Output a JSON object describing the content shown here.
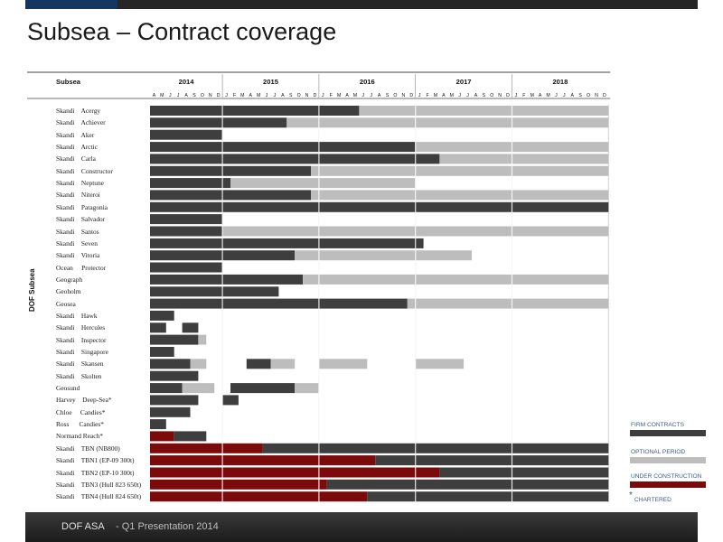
{
  "page": {
    "title": "Subsea – Contract coverage"
  },
  "footer": {
    "company": "DOF ASA",
    "subtitle": "- Q1 Presentation 2014"
  },
  "colors": {
    "firm": "#3e3e3e",
    "optional": "#bdbdbd",
    "construction": "#7d0a0a",
    "header_dark": "#262626",
    "accent_blue": "#14365f"
  },
  "chart_data": {
    "type": "table",
    "header_label": "Subsea",
    "group_label": "DOF Subsea",
    "years": [
      "2014",
      "2015",
      "2016",
      "2017",
      "2018"
    ],
    "start_month": "2014-04",
    "end_month": "2018-12",
    "months": [
      "A",
      "M",
      "J",
      "J",
      "A",
      "S",
      "O",
      "N",
      "D",
      "J",
      "F",
      "M",
      "A",
      "M",
      "J",
      "J",
      "A",
      "S",
      "O",
      "N",
      "D",
      "J",
      "F",
      "M",
      "A",
      "M",
      "J",
      "J",
      "A",
      "S",
      "O",
      "N",
      "D",
      "J",
      "F",
      "M",
      "A",
      "M",
      "J",
      "J",
      "A",
      "S",
      "O",
      "N",
      "D",
      "J",
      "F",
      "M",
      "A",
      "M",
      "J",
      "J",
      "A",
      "S",
      "O",
      "N",
      "D"
    ],
    "legend": [
      {
        "key": "firm",
        "label": "FIRM CONTRACTS"
      },
      {
        "key": "optional",
        "label": "OPTIONAL PERIOD"
      },
      {
        "key": "construction",
        "label": "UNDER CONSTRUCTION"
      },
      {
        "key": "chartered",
        "label": "CHARTERED",
        "symbol": "*"
      }
    ],
    "rows": [
      {
        "label": "Skandi    Acergy",
        "segments": [
          [
            "firm",
            "2014-04",
            "2016-05"
          ],
          [
            "optional",
            "2016-06",
            "2018-12"
          ]
        ]
      },
      {
        "label": "Skandi    Achiever",
        "segments": [
          [
            "firm",
            "2014-04",
            "2015-08"
          ],
          [
            "optional",
            "2015-09",
            "2018-12"
          ]
        ]
      },
      {
        "label": "Skandi    Aker",
        "segments": [
          [
            "firm",
            "2014-04",
            "2014-12"
          ]
        ]
      },
      {
        "label": "Skandi    Arctic",
        "segments": [
          [
            "firm",
            "2014-04",
            "2016-12"
          ],
          [
            "optional",
            "2017-01",
            "2018-12"
          ]
        ]
      },
      {
        "label": "Skandi    Carla",
        "segments": [
          [
            "firm",
            "2014-04",
            "2017-03"
          ],
          [
            "optional",
            "2017-04",
            "2018-12"
          ]
        ]
      },
      {
        "label": "Skandi    Constructor",
        "segments": [
          [
            "firm",
            "2014-04",
            "2015-11"
          ],
          [
            "optional",
            "2015-12",
            "2018-12"
          ]
        ]
      },
      {
        "label": "Skandi    Neptune",
        "segments": [
          [
            "firm",
            "2014-04",
            "2015-01"
          ],
          [
            "optional",
            "2015-02",
            "2016-12"
          ]
        ]
      },
      {
        "label": "Skandi    Niteroi",
        "segments": [
          [
            "firm",
            "2014-04",
            "2015-11"
          ],
          [
            "optional",
            "2015-12",
            "2018-12"
          ]
        ]
      },
      {
        "label": "Skandi    Patagonia",
        "segments": [
          [
            "firm",
            "2014-04",
            "2018-12"
          ]
        ]
      },
      {
        "label": "Skandi    Salvador",
        "segments": [
          [
            "firm",
            "2014-04",
            "2014-12"
          ]
        ]
      },
      {
        "label": "Skandi    Santos",
        "segments": [
          [
            "firm",
            "2014-04",
            "2014-12"
          ],
          [
            "optional",
            "2015-01",
            "2018-12"
          ]
        ]
      },
      {
        "label": "Skandi    Seven",
        "segments": [
          [
            "firm",
            "2014-04",
            "2017-01"
          ]
        ]
      },
      {
        "label": "Skandi    Vitoria",
        "segments": [
          [
            "firm",
            "2014-04",
            "2015-09"
          ],
          [
            "optional",
            "2015-10",
            "2017-07"
          ]
        ]
      },
      {
        "label": "Ocean     Protector",
        "segments": [
          [
            "firm",
            "2014-04",
            "2014-12"
          ]
        ]
      },
      {
        "label": "Geograph",
        "segments": [
          [
            "firm",
            "2014-04",
            "2015-10"
          ],
          [
            "optional",
            "2015-11",
            "2018-12"
          ]
        ]
      },
      {
        "label": "Geoholm",
        "segments": [
          [
            "firm",
            "2014-04",
            "2015-07"
          ]
        ]
      },
      {
        "label": "Geosea",
        "segments": [
          [
            "firm",
            "2014-04",
            "2016-11"
          ],
          [
            "optional",
            "2016-12",
            "2018-12"
          ]
        ]
      },
      {
        "label": "Skandi    Hawk",
        "segments": [
          [
            "firm",
            "2014-04",
            "2014-06"
          ]
        ]
      },
      {
        "label": "Skandi    Hercules",
        "segments": [
          [
            "firm",
            "2014-04",
            "2014-05"
          ],
          [
            "firm",
            "2014-08",
            "2014-09"
          ]
        ]
      },
      {
        "label": "Skandi    Inspector",
        "segments": [
          [
            "firm",
            "2014-04",
            "2014-09"
          ],
          [
            "optional",
            "2014-10",
            "2014-10"
          ]
        ]
      },
      {
        "label": "Skandi    Singapore",
        "segments": [
          [
            "firm",
            "2014-04",
            "2014-06"
          ]
        ]
      },
      {
        "label": "Skandi    Skansen",
        "segments": [
          [
            "firm",
            "2014-04",
            "2014-08"
          ],
          [
            "optional",
            "2014-09",
            "2014-10"
          ],
          [
            "firm",
            "2015-04",
            "2015-06"
          ],
          [
            "optional",
            "2015-07",
            "2015-09"
          ],
          [
            "optional",
            "2016-01",
            "2016-06"
          ],
          [
            "optional",
            "2017-01",
            "2017-06"
          ]
        ]
      },
      {
        "label": "Skandi    Skolten",
        "segments": [
          [
            "firm",
            "2014-04",
            "2014-09"
          ]
        ]
      },
      {
        "label": "Geosund",
        "segments": [
          [
            "firm",
            "2014-04",
            "2014-07"
          ],
          [
            "optional",
            "2014-08",
            "2014-11"
          ],
          [
            "firm",
            "2015-02",
            "2015-09"
          ],
          [
            "optional",
            "2015-10",
            "2015-12"
          ]
        ]
      },
      {
        "label": "Harvey    Deep-Sea*",
        "segments": [
          [
            "firm",
            "2014-04",
            "2014-09"
          ],
          [
            "firm",
            "2015-01",
            "2015-02"
          ]
        ]
      },
      {
        "label": "Chloe     Candies*",
        "segments": [
          [
            "firm",
            "2014-04",
            "2014-08"
          ]
        ]
      },
      {
        "label": "Ross      Candies*",
        "segments": [
          [
            "firm",
            "2014-04",
            "2014-05"
          ]
        ]
      },
      {
        "label": "Normand Reach*",
        "segments": [
          [
            "construction",
            "2014-04",
            "2014-06"
          ],
          [
            "firm",
            "2014-07",
            "2014-10"
          ]
        ]
      },
      {
        "label": "Skandi    TBN (NB800)",
        "segments": [
          [
            "construction",
            "2014-04",
            "2015-05"
          ],
          [
            "firm",
            "2015-06",
            "2018-12"
          ]
        ]
      },
      {
        "label": "Skandi    TBN1 (EP-09 300t)",
        "segments": [
          [
            "construction",
            "2014-04",
            "2016-07"
          ],
          [
            "firm",
            "2016-08",
            "2018-12"
          ]
        ]
      },
      {
        "label": "Skandi    TBN2 (EP-10 300t)",
        "segments": [
          [
            "construction",
            "2014-04",
            "2017-03"
          ],
          [
            "firm",
            "2017-04",
            "2018-12"
          ]
        ]
      },
      {
        "label": "Skandi    TBN3 (Hull 823 650t)",
        "segments": [
          [
            "construction",
            "2014-04",
            "2016-01"
          ],
          [
            "firm",
            "2016-02",
            "2018-12"
          ]
        ]
      },
      {
        "label": "Skandi    TBN4 (Hull 824 650t)",
        "segments": [
          [
            "construction",
            "2014-04",
            "2016-06"
          ],
          [
            "firm",
            "2016-07",
            "2018-12"
          ]
        ]
      }
    ]
  }
}
